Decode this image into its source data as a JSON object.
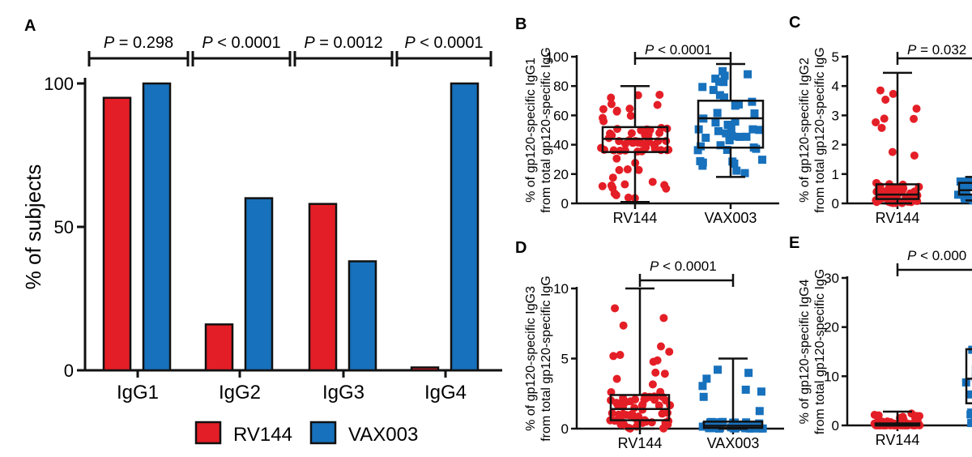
{
  "colors": {
    "rv144": "#e41e26",
    "vax003": "#1771bc",
    "axis": "#111111"
  },
  "legend": [
    {
      "name": "RV144",
      "color": "#e41e26"
    },
    {
      "name": "VAX003",
      "color": "#1771bc"
    }
  ],
  "chart_data": [
    {
      "panel": "A",
      "type": "bar",
      "title": "",
      "ylabel": "% of subjects",
      "ylim": [
        0,
        100
      ],
      "yticks": [
        "0",
        "50",
        "100"
      ],
      "categories": [
        "IgG1",
        "IgG2",
        "IgG3",
        "IgG4"
      ],
      "series": [
        {
          "name": "RV144",
          "values": [
            95,
            16,
            58,
            1
          ]
        },
        {
          "name": "VAX003",
          "values": [
            100,
            60,
            38,
            100
          ]
        }
      ],
      "pvalues": [
        "P = 0.298",
        "P < 0.0001",
        "P = 0.0012",
        "P < 0.0001"
      ]
    },
    {
      "panel": "B",
      "type": "box",
      "ylabel_line1": "% of gp120-specific IgG1",
      "ylabel_line2": "from total gp120-specific IgG",
      "ylim": [
        0,
        100
      ],
      "yticks": [
        "0",
        "20",
        "40",
        "60",
        "80",
        "100"
      ],
      "categories": [
        "RV144",
        "VAX003"
      ],
      "pvalue": "P < 0.0001",
      "boxes": [
        {
          "name": "RV144",
          "min": 1,
          "q1": 35,
          "median": 44,
          "q3": 52,
          "max": 80
        },
        {
          "name": "VAX003",
          "min": 18,
          "q1": 38,
          "median": 58,
          "q3": 70,
          "max": 95
        }
      ]
    },
    {
      "panel": "C",
      "type": "box",
      "ylabel_line1": "% of gp120-specific IgG2",
      "ylabel_line2": "from total gp120-specific IgG",
      "ylim": [
        0,
        5
      ],
      "yticks": [
        "0",
        "1",
        "2",
        "3",
        "4",
        "5"
      ],
      "categories": [
        "RV144",
        "V"
      ],
      "pvalue": "P = 0.032",
      "boxes": [
        {
          "name": "RV144",
          "min": 0,
          "q1": 0.15,
          "median": 0.3,
          "q3": 0.65,
          "max": 4.45
        },
        {
          "name": "V",
          "min": 0.1,
          "q1": 0.3,
          "median": 0.45,
          "q3": 0.7,
          "max": 0.9
        }
      ]
    },
    {
      "panel": "D",
      "type": "box",
      "ylabel_line1": "% of gp120-specific IgG3",
      "ylabel_line2": "from total gp120-specific IgG",
      "ylim": [
        0,
        10
      ],
      "yticks": [
        "0",
        "5",
        "10"
      ],
      "categories": [
        "RV144",
        "VAX003"
      ],
      "pvalue": "P < 0.0001",
      "boxes": [
        {
          "name": "RV144",
          "min": 0,
          "q1": 0.6,
          "median": 1.4,
          "q3": 2.4,
          "max": 10
        },
        {
          "name": "VAX003",
          "min": 0,
          "q1": 0.05,
          "median": 0.2,
          "q3": 0.5,
          "max": 5
        }
      ]
    },
    {
      "panel": "E",
      "type": "box",
      "ylabel_line1": "% of gp120-specific IgG4",
      "ylabel_line2": "from total gp120-specific IgG",
      "ylim": [
        0,
        30
      ],
      "yticks": [
        "0",
        "10",
        "20",
        "30"
      ],
      "categories": [
        "RV144",
        "V"
      ],
      "pvalue": "P < 0.000",
      "boxes": [
        {
          "name": "RV144",
          "min": 0,
          "q1": 0,
          "median": 0,
          "q3": 0.4,
          "max": 2.8
        },
        {
          "name": "V",
          "min": 0,
          "q1": 4.5,
          "median": 9.5,
          "q3": 15.5,
          "max": 30
        }
      ]
    }
  ]
}
